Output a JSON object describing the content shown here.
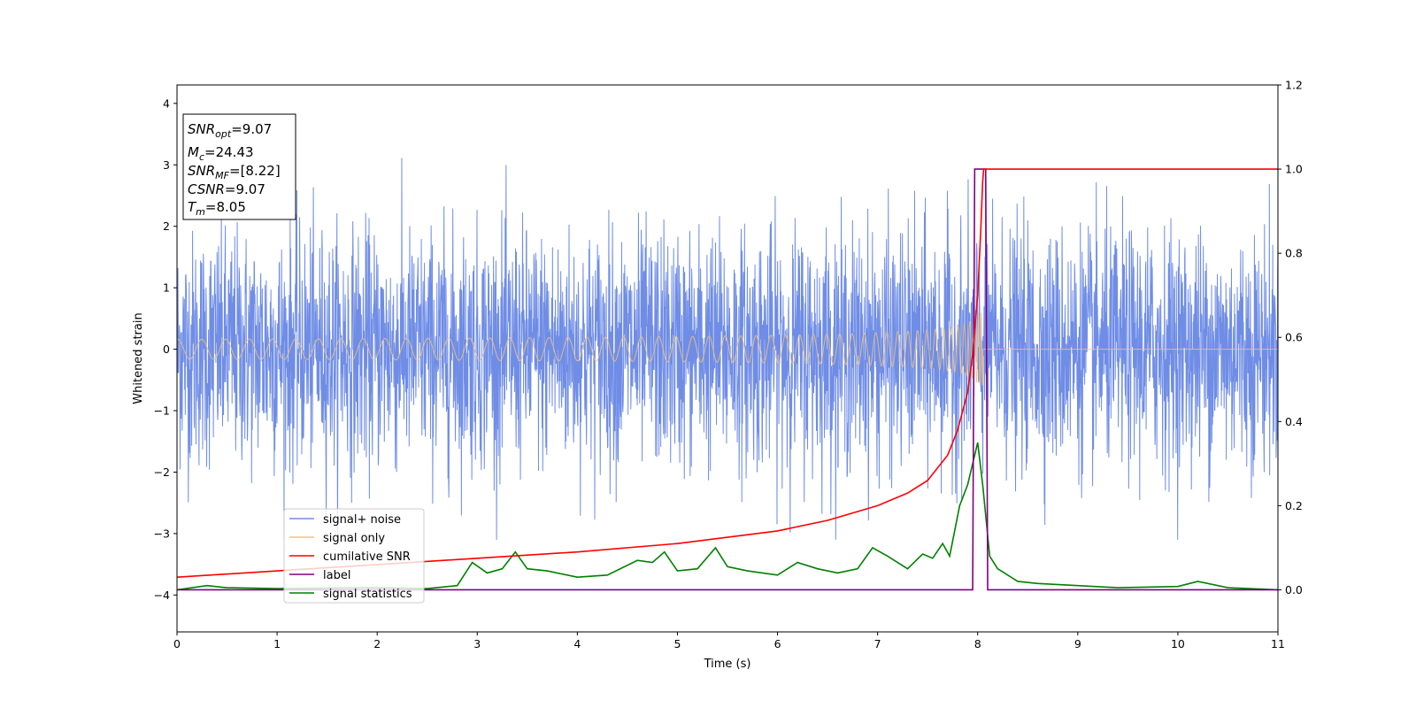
{
  "chart_data": {
    "type": "line",
    "title": "",
    "xlabel": "Time (s)",
    "ylabel": "Whitened strain",
    "xlim": [
      0,
      11
    ],
    "ylim_left": [
      -4.6,
      4.3
    ],
    "ylim_right": [
      -0.1,
      1.2
    ],
    "x_ticks": [
      "0",
      "1",
      "2",
      "3",
      "4",
      "5",
      "6",
      "7",
      "8",
      "9",
      "10",
      "11"
    ],
    "y_ticks_left": [
      "−4",
      "−3",
      "−2",
      "−1",
      "0",
      "1",
      "2",
      "3",
      "4"
    ],
    "y_ticks_right": [
      "0.0",
      "0.2",
      "0.4",
      "0.6",
      "0.8",
      "1.0",
      "1.2"
    ],
    "grid": false,
    "legend_position": "lower-left",
    "series": [
      {
        "name": "signal+ noise",
        "axis": "left",
        "color": "#6f8de6",
        "description_of_values": "Gaussian-like noise centred on 0, spanning roughly -3.1 to 3.35 across 0–11 s"
      },
      {
        "name": "signal only",
        "axis": "left",
        "color": "#f4c27a",
        "chirp": {
          "t_merge": 8.05,
          "peak_amplitude": 0.6
        }
      },
      {
        "name": "cumilative SNR",
        "axis": "right",
        "color": "#ff0000",
        "x": [
          0,
          1,
          2,
          3,
          4,
          5,
          6,
          6.5,
          7,
          7.3,
          7.5,
          7.7,
          7.8,
          7.9,
          7.95,
          8.0,
          8.03,
          8.05,
          8.06,
          11
        ],
        "y": [
          0.03,
          0.045,
          0.06,
          0.075,
          0.09,
          0.11,
          0.14,
          0.165,
          0.2,
          0.23,
          0.26,
          0.32,
          0.38,
          0.47,
          0.56,
          0.7,
          0.85,
          0.97,
          1.0,
          1.0
        ]
      },
      {
        "name": "label",
        "axis": "right",
        "color": "#800080",
        "x": [
          0,
          7.95,
          7.97,
          8.08,
          8.1,
          11
        ],
        "y": [
          0,
          0,
          1.0,
          1.0,
          0,
          0
        ]
      },
      {
        "name": "signal statistics",
        "axis": "right",
        "color": "#008000",
        "x": [
          0,
          0.3,
          0.5,
          1.0,
          2.0,
          2.5,
          2.8,
          2.95,
          3.1,
          3.25,
          3.38,
          3.5,
          3.7,
          4.0,
          4.3,
          4.6,
          4.75,
          4.87,
          5.0,
          5.2,
          5.38,
          5.5,
          5.7,
          6.0,
          6.2,
          6.4,
          6.6,
          6.8,
          6.95,
          7.1,
          7.3,
          7.45,
          7.55,
          7.65,
          7.72,
          7.82,
          7.9,
          8.0,
          8.05,
          8.12,
          8.2,
          8.4,
          8.6,
          9.0,
          9.4,
          10.0,
          10.2,
          10.5,
          11.0
        ],
        "y": [
          0.0,
          0.01,
          0.005,
          0.003,
          0.005,
          0.003,
          0.01,
          0.065,
          0.04,
          0.05,
          0.09,
          0.05,
          0.045,
          0.03,
          0.035,
          0.07,
          0.065,
          0.09,
          0.045,
          0.05,
          0.1,
          0.055,
          0.045,
          0.035,
          0.065,
          0.05,
          0.04,
          0.05,
          0.1,
          0.08,
          0.05,
          0.085,
          0.075,
          0.11,
          0.08,
          0.2,
          0.25,
          0.35,
          0.25,
          0.08,
          0.05,
          0.02,
          0.015,
          0.01,
          0.005,
          0.008,
          0.02,
          0.005,
          0.0
        ]
      }
    ]
  },
  "info_box": {
    "line1_name": "SNR",
    "line1_sub": "opt",
    "line1_value": "=9.07",
    "line2_name": "M",
    "line2_sub": "c",
    "line2_value": "=24.43",
    "line3_name": "SNR",
    "line3_sub": "MF",
    "line3_value": "=[8.22]",
    "line4_name": "CSNR",
    "line4_value": "=9.07",
    "line5_name": "T",
    "line5_sub": "m",
    "line5_value": "=8.05"
  },
  "legend": {
    "items": [
      {
        "label": "signal+ noise",
        "color": "#6f8de6"
      },
      {
        "label": "signal only",
        "color": "#f4c27a"
      },
      {
        "label": "cumilative SNR",
        "color": "#ff0000"
      },
      {
        "label": "label",
        "color": "#800080"
      },
      {
        "label": "signal statistics",
        "color": "#008000"
      }
    ]
  }
}
